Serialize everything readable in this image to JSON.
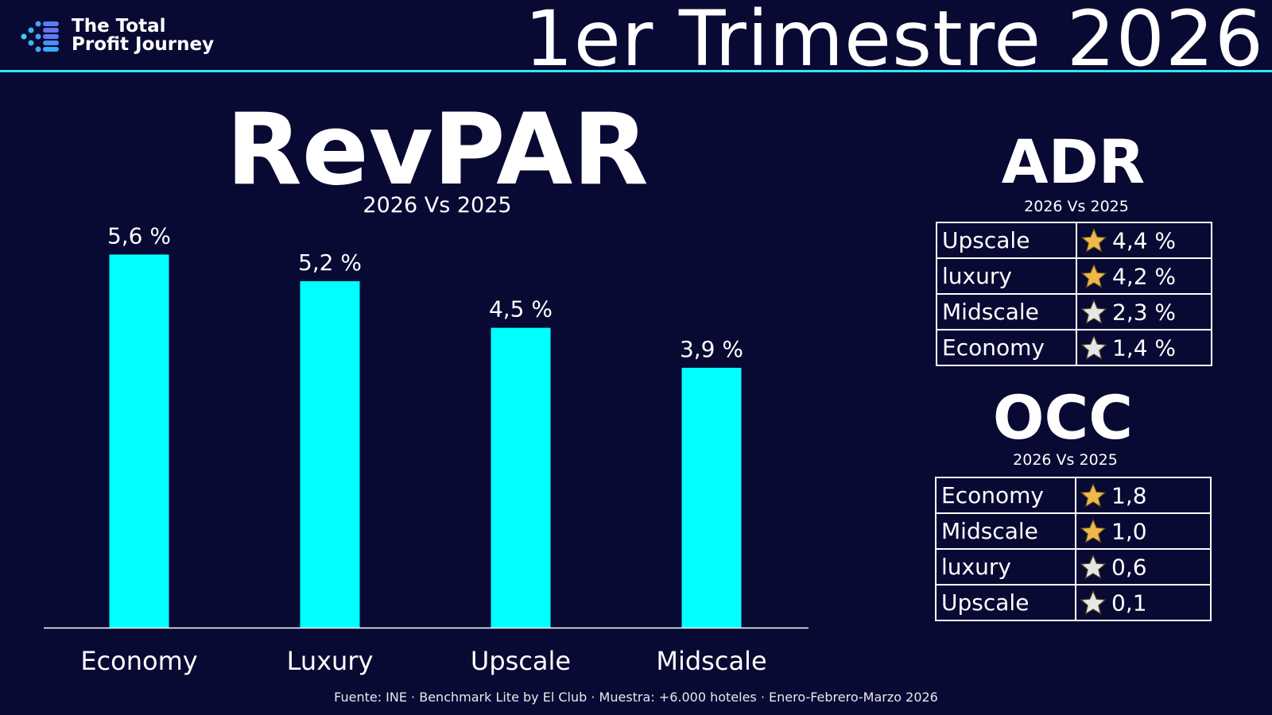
{
  "header": {
    "logo_line1": "The Total",
    "logo_line2": "Profit Journey",
    "period_title": "1er Trimestre 2026"
  },
  "revpar": {
    "title": "RevPAR",
    "subtitle": "2026 Vs 2025"
  },
  "chart_data": {
    "type": "bar",
    "title": "RevPAR",
    "subtitle": "2026 Vs 2025",
    "categories": [
      "Economy",
      "Luxury",
      "Upscale",
      "Midscale"
    ],
    "values": [
      5.6,
      5.2,
      4.5,
      3.9
    ],
    "value_labels": [
      "5,6 %",
      "5,2 %",
      "4,5 %",
      "3,9 %"
    ],
    "unit": "%",
    "xlabel": "",
    "ylabel": "",
    "ylim": [
      0,
      5.7
    ],
    "grid": false,
    "legend": "none",
    "bar_color": "#00ffff"
  },
  "adr": {
    "title": "ADR",
    "subtitle": "2026 Vs 2025",
    "rows": [
      {
        "category": "Upscale",
        "value": "4,4 %",
        "star": "gold-star-icon"
      },
      {
        "category": "luxury",
        "value": "4,2 %",
        "star": "gold-star-icon"
      },
      {
        "category": "Midscale",
        "value": "2,3 %",
        "star": "silver-star-icon"
      },
      {
        "category": "Economy",
        "value": "1,4 %",
        "star": "silver-star-icon"
      }
    ]
  },
  "occ": {
    "title": "OCC",
    "subtitle": "2026 Vs 2025",
    "rows": [
      {
        "category": "Economy",
        "value": "1,8",
        "star": "gold-star-icon"
      },
      {
        "category": "Midscale",
        "value": "1,0",
        "star": "gold-star-icon"
      },
      {
        "category": "luxury",
        "value": "0,6",
        "star": "silver-star-icon"
      },
      {
        "category": "Upscale",
        "value": "0,1",
        "star": "silver-star-icon"
      }
    ]
  },
  "footer": "Fuente: INE · Benchmark Lite by El Club · Muestra: +6.000 hoteles · Enero-Febrero-Marzo 2026",
  "colors": {
    "background": "#090a33",
    "accent_line": "#2fe6f4",
    "bar": "#00ffff",
    "gold_star": "#f0b84a",
    "silver_star": "#e6e6e6"
  }
}
